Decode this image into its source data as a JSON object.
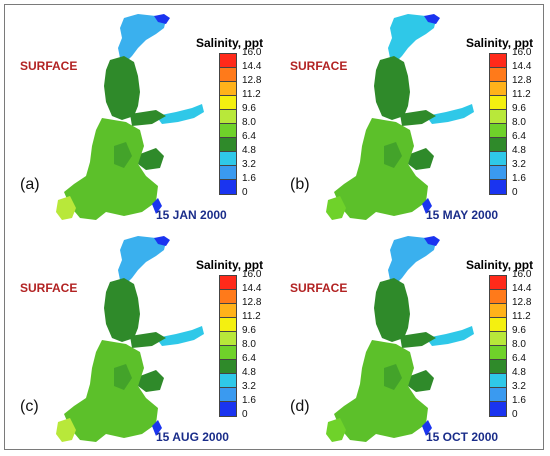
{
  "colorbar": {
    "title": "Salinity, ppt",
    "ticks": [
      "16.0",
      "14.4",
      "12.8",
      "11.2",
      "9.6",
      "8.0",
      "6.4",
      "4.8",
      "3.2",
      "1.6",
      "0"
    ],
    "colors": [
      "#ff2a1a",
      "#ff7a1a",
      "#ffb21a",
      "#f4f010",
      "#b8e83a",
      "#6fd22a",
      "#2f8a2a",
      "#2fc8e8",
      "#3a9af0",
      "#1a34f0"
    ]
  },
  "panels": [
    {
      "layer_label": "SURFACE",
      "letter": "(a)",
      "date": "15 JAN 2000",
      "colors": {
        "bothnian_bay": "#3ab0ee",
        "bothnian_sea": "#2f8a2a",
        "gulf_finland": "#2fc8e8",
        "main_basin": "#5cc02a",
        "kattegat": "#b8e83a"
      }
    },
    {
      "layer_label": "SURFACE",
      "letter": "(b)",
      "date": "15 MAY 2000",
      "colors": {
        "bothnian_bay": "#2fc8e8",
        "bothnian_sea": "#2f8a2a",
        "gulf_finland": "#2fc8e8",
        "main_basin": "#5cc02a",
        "kattegat": "#6fd22a"
      }
    },
    {
      "layer_label": "SURFACE",
      "letter": "(c)",
      "date": "15 AUG 2000",
      "colors": {
        "bothnian_bay": "#3ab0ee",
        "bothnian_sea": "#2f8a2a",
        "gulf_finland": "#2fc8e8",
        "main_basin": "#5cc02a",
        "kattegat": "#b8e83a"
      }
    },
    {
      "layer_label": "SURFACE",
      "letter": "(d)",
      "date": "15 OCT 2000",
      "colors": {
        "bothnian_bay": "#3ab0ee",
        "bothnian_sea": "#2f8a2a",
        "gulf_finland": "#2fc8e8",
        "main_basin": "#5cc02a",
        "kattegat": "#6fd22a"
      }
    }
  ]
}
